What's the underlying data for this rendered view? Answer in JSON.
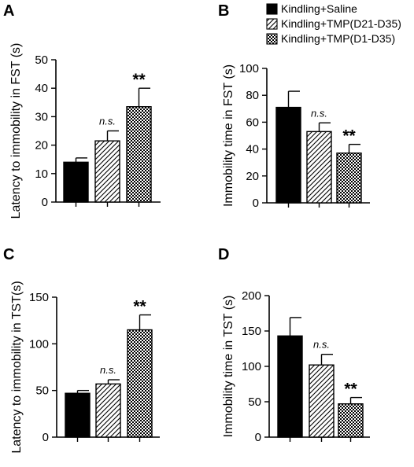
{
  "legend": [
    {
      "label": "Kindling+Saline",
      "pattern": "solid"
    },
    {
      "label": "Kindling+TMP(D21-D35)",
      "pattern": "hatch"
    },
    {
      "label": "Kindling+TMP(D1-D35)",
      "pattern": "checker"
    }
  ],
  "colors": {
    "bar_fill": "#000000",
    "axis": "#000000",
    "background": "#ffffff"
  },
  "chart_data": [
    {
      "panel": "A",
      "type": "bar",
      "title": "",
      "xlabel": "",
      "ylabel": "Latency to immobility in FST (s)",
      "ylim": [
        0,
        50
      ],
      "yticks": [
        0,
        10,
        20,
        30,
        40,
        50
      ],
      "categories": [
        "Kindling+Saline",
        "Kindling+TMP(D21-D35)",
        "Kindling+TMP(D1-D35)"
      ],
      "values": [
        14,
        21.5,
        33.5
      ],
      "errors": [
        1.5,
        3.5,
        6.5
      ],
      "annotations": [
        "",
        "n.s.",
        "**"
      ]
    },
    {
      "panel": "B",
      "type": "bar",
      "title": "",
      "xlabel": "",
      "ylabel": "Immobility time in FST (s)",
      "ylim": [
        0,
        100
      ],
      "yticks": [
        0,
        20,
        40,
        60,
        80,
        100
      ],
      "categories": [
        "Kindling+Saline",
        "Kindling+TMP(D21-D35)",
        "Kindling+TMP(D1-D35)"
      ],
      "values": [
        71,
        53,
        37
      ],
      "errors": [
        12,
        6.5,
        6.5
      ],
      "annotations": [
        "",
        "n.s.",
        "**"
      ]
    },
    {
      "panel": "C",
      "type": "bar",
      "title": "",
      "xlabel": "",
      "ylabel": "Latency to immobility in TST(s)",
      "ylim": [
        0,
        150
      ],
      "yticks": [
        0,
        50,
        100,
        150
      ],
      "categories": [
        "Kindling+Saline",
        "Kindling+TMP(D21-D35)",
        "Kindling+TMP(D1-D35)"
      ],
      "values": [
        47,
        57,
        115
      ],
      "errors": [
        3,
        4.5,
        16
      ],
      "annotations": [
        "",
        "n.s.",
        "**"
      ]
    },
    {
      "panel": "D",
      "type": "bar",
      "title": "",
      "xlabel": "",
      "ylabel": "Immobility time in TST (s)",
      "ylim": [
        0,
        200
      ],
      "yticks": [
        0,
        50,
        100,
        150,
        200
      ],
      "categories": [
        "Kindling+Saline",
        "Kindling+TMP(D21-D35)",
        "Kindling+TMP(D1-D35)"
      ],
      "values": [
        143,
        102,
        47
      ],
      "errors": [
        26,
        15,
        9
      ],
      "annotations": [
        "",
        "n.s.",
        "**"
      ]
    }
  ]
}
